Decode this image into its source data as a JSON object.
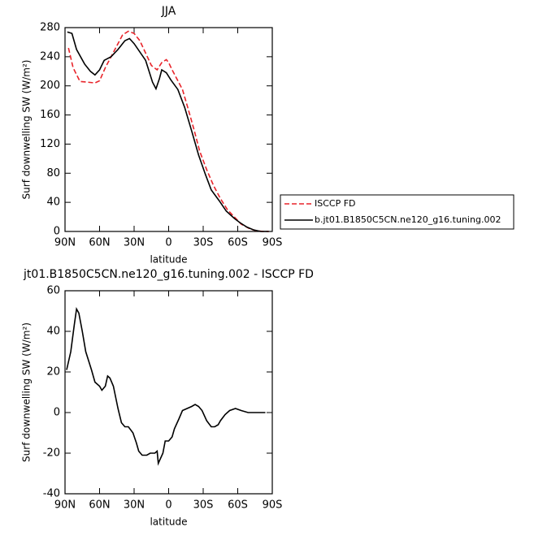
{
  "chart_data": [
    {
      "type": "line",
      "title": "JJA",
      "x_label": "latitude",
      "y_label": "Surf downwelling SW (W/m²)",
      "xlim": [
        90,
        -90
      ],
      "xticks": [
        {
          "value": 90,
          "label": "90N"
        },
        {
          "value": 60,
          "label": "60N"
        },
        {
          "value": 30,
          "label": "30N"
        },
        0,
        {
          "value": -30,
          "label": "30S"
        },
        {
          "value": -60,
          "label": "60S"
        },
        {
          "value": -90,
          "label": "90S"
        }
      ],
      "ylim": [
        0,
        280
      ],
      "yticks": [
        0,
        40,
        80,
        120,
        160,
        200,
        240,
        280
      ],
      "legend": "outside-right",
      "series": [
        {
          "name": "ISCCP FD",
          "color": "#e8242a",
          "style": "dashed",
          "x": [
            87,
            83,
            77,
            70,
            64,
            60,
            55,
            50,
            45,
            40,
            35,
            30,
            25,
            20,
            15,
            10,
            6,
            2,
            0,
            -3,
            -7,
            -12,
            -17,
            -22,
            -27,
            -33,
            -39,
            -45,
            -51,
            -57,
            -63,
            -70,
            -76,
            -82,
            -87
          ],
          "values": [
            252,
            225,
            206,
            205,
            204,
            207,
            225,
            240,
            255,
            270,
            275,
            272,
            262,
            245,
            228,
            222,
            232,
            236,
            232,
            222,
            210,
            195,
            168,
            140,
            110,
            85,
            63,
            45,
            30,
            20,
            10,
            4,
            1,
            0,
            0
          ]
        },
        {
          "name": "b.jt01.B1850C5CN.ne120_g16.tuning.002",
          "color": "#000000",
          "style": "solid",
          "x": [
            88,
            84,
            80,
            73,
            68,
            64,
            60,
            56,
            50,
            44,
            38,
            34,
            30,
            20,
            14,
            11,
            8,
            6,
            2,
            -2,
            -8,
            -14,
            -20,
            -26,
            -32,
            -37,
            -44,
            -50,
            -57,
            -62,
            -68,
            -74,
            -80,
            -87
          ],
          "values": [
            274,
            272,
            250,
            230,
            220,
            215,
            222,
            235,
            240,
            250,
            262,
            265,
            258,
            235,
            205,
            196,
            210,
            222,
            218,
            208,
            195,
            170,
            138,
            105,
            78,
            57,
            42,
            28,
            18,
            12,
            6,
            2,
            0,
            0
          ]
        }
      ]
    },
    {
      "type": "line",
      "title": "jt01.B1850C5CN.ne120_g16.tuning.002 - ISCCP FD",
      "x_label": "latitude",
      "y_label": "Surf downwelling SW (W/m²)",
      "xlim": [
        90,
        -90
      ],
      "xticks": [
        {
          "value": 90,
          "label": "90N"
        },
        {
          "value": 60,
          "label": "60N"
        },
        {
          "value": 30,
          "label": "30N"
        },
        0,
        {
          "value": -30,
          "label": "30S"
        },
        {
          "value": -60,
          "label": "60S"
        },
        {
          "value": -90,
          "label": "90S"
        }
      ],
      "ylim": [
        -40,
        60
      ],
      "yticks": [
        -40,
        -20,
        0,
        20,
        40,
        60
      ],
      "series": [
        {
          "color": "#000000",
          "style": "solid",
          "x": [
            88.6,
            85,
            82,
            80,
            78,
            75,
            72,
            67,
            64,
            60,
            58,
            55,
            53,
            51,
            48,
            44,
            41,
            38,
            35,
            31,
            28,
            26,
            23,
            19,
            16,
            12,
            10,
            9,
            5,
            3,
            0,
            -3,
            -5,
            -9,
            -12,
            -16,
            -20,
            -23,
            -26,
            -29,
            -33,
            -37,
            -40,
            -43,
            -45,
            -49,
            -53,
            -58,
            -63,
            -69,
            -76,
            -84
          ],
          "values": [
            21,
            30,
            43,
            51,
            49,
            40,
            30,
            21,
            15,
            13,
            11,
            13,
            18,
            17,
            13,
            2,
            -5,
            -7,
            -7,
            -10,
            -15,
            -19,
            -21,
            -21,
            -20,
            -20,
            -19,
            -25,
            -20,
            -14,
            -14,
            -12,
            -8,
            -3,
            1,
            2,
            3,
            4,
            3,
            1,
            -4,
            -7,
            -7,
            -6,
            -4,
            -1,
            1,
            2,
            1,
            0,
            0,
            0
          ]
        }
      ]
    }
  ]
}
